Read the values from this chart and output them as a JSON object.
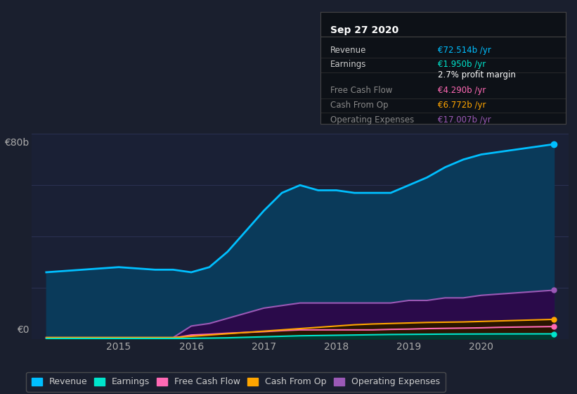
{
  "bg_color": "#1a1f2e",
  "plot_bg_color": "#1a2035",
  "grid_color": "#2a3050",
  "years": [
    2014.0,
    2014.25,
    2014.5,
    2014.75,
    2015.0,
    2015.25,
    2015.5,
    2015.75,
    2016.0,
    2016.25,
    2016.5,
    2016.75,
    2017.0,
    2017.25,
    2017.5,
    2017.75,
    2018.0,
    2018.25,
    2018.5,
    2018.75,
    2019.0,
    2019.25,
    2019.5,
    2019.75,
    2020.0,
    2020.25,
    2020.5,
    2020.75,
    2021.0
  ],
  "revenue": [
    26,
    26.5,
    27,
    27.5,
    28,
    27.5,
    27,
    27,
    26,
    28,
    34,
    42,
    50,
    57,
    60,
    58,
    58,
    57,
    57,
    57,
    60,
    63,
    67,
    70,
    72,
    73,
    74,
    75,
    76
  ],
  "operating_expenses": [
    0.5,
    0.5,
    0.5,
    0.5,
    0.5,
    0.5,
    0.5,
    0.5,
    5,
    6,
    8,
    10,
    12,
    13,
    14,
    14,
    14,
    14,
    14,
    14,
    15,
    15,
    16,
    16,
    17,
    17.5,
    18,
    18.5,
    19
  ],
  "free_cash_flow": [
    0.3,
    0.3,
    0.3,
    0.3,
    0.3,
    0.3,
    0.3,
    0.3,
    1.5,
    1.8,
    2.2,
    2.5,
    2.8,
    3.2,
    3.5,
    3.5,
    3.5,
    3.5,
    3.5,
    3.7,
    3.8,
    4.0,
    4.1,
    4.2,
    4.3,
    4.5,
    4.6,
    4.7,
    4.8
  ],
  "cash_from_op": [
    0.5,
    0.5,
    0.5,
    0.5,
    0.5,
    0.5,
    0.5,
    0.5,
    1.0,
    1.5,
    2.0,
    2.5,
    3.0,
    3.5,
    4.0,
    4.5,
    5.0,
    5.5,
    5.8,
    6.0,
    6.2,
    6.4,
    6.5,
    6.6,
    6.8,
    7.0,
    7.2,
    7.4,
    7.6
  ],
  "earnings": [
    0.1,
    0.15,
    0.15,
    0.15,
    0.15,
    0.15,
    0.15,
    0.15,
    0.2,
    0.3,
    0.4,
    0.6,
    0.8,
    1.0,
    1.2,
    1.3,
    1.4,
    1.5,
    1.6,
    1.7,
    1.75,
    1.8,
    1.85,
    1.88,
    1.9,
    1.92,
    1.93,
    1.94,
    1.95
  ],
  "revenue_color": "#00bfff",
  "revenue_fill": "#0a3a5a",
  "earnings_color": "#00e5cc",
  "earnings_fill": "#003a30",
  "free_cash_flow_color": "#ff69b4",
  "free_cash_flow_fill": "#3a1030",
  "cash_from_op_color": "#ffa500",
  "cash_from_op_fill": "#2a1500",
  "operating_expenses_color": "#9b59b6",
  "operating_expenses_fill": "#2a0a4a",
  "ylim": [
    0,
    80
  ],
  "xlim": [
    2013.8,
    2021.2
  ],
  "yticks": [
    0,
    20,
    40,
    60,
    80
  ],
  "xticks": [
    2015,
    2016,
    2017,
    2018,
    2019,
    2020
  ],
  "info_box": {
    "title": "Sep 27 2020",
    "rows": [
      {
        "label": "Revenue",
        "value": "€72.514b /yr",
        "value_color": "#00bfff",
        "label_color": "#cccccc"
      },
      {
        "label": "Earnings",
        "value": "€1.950b /yr",
        "value_color": "#00e5cc",
        "label_color": "#cccccc"
      },
      {
        "label": "",
        "value": "2.7% profit margin",
        "value_color": "#ffffff",
        "label_color": "#cccccc"
      },
      {
        "label": "Free Cash Flow",
        "value": "€4.290b /yr",
        "value_color": "#ff69b4",
        "label_color": "#888888"
      },
      {
        "label": "Cash From Op",
        "value": "€6.772b /yr",
        "value_color": "#ffa500",
        "label_color": "#888888"
      },
      {
        "label": "Operating Expenses",
        "value": "€17.007b /yr",
        "value_color": "#9b59b6",
        "label_color": "#888888"
      }
    ]
  },
  "legend_items": [
    {
      "label": "Revenue",
      "color": "#00bfff"
    },
    {
      "label": "Earnings",
      "color": "#00e5cc"
    },
    {
      "label": "Free Cash Flow",
      "color": "#ff69b4"
    },
    {
      "label": "Cash From Op",
      "color": "#ffa500"
    },
    {
      "label": "Operating Expenses",
      "color": "#9b59b6"
    }
  ]
}
